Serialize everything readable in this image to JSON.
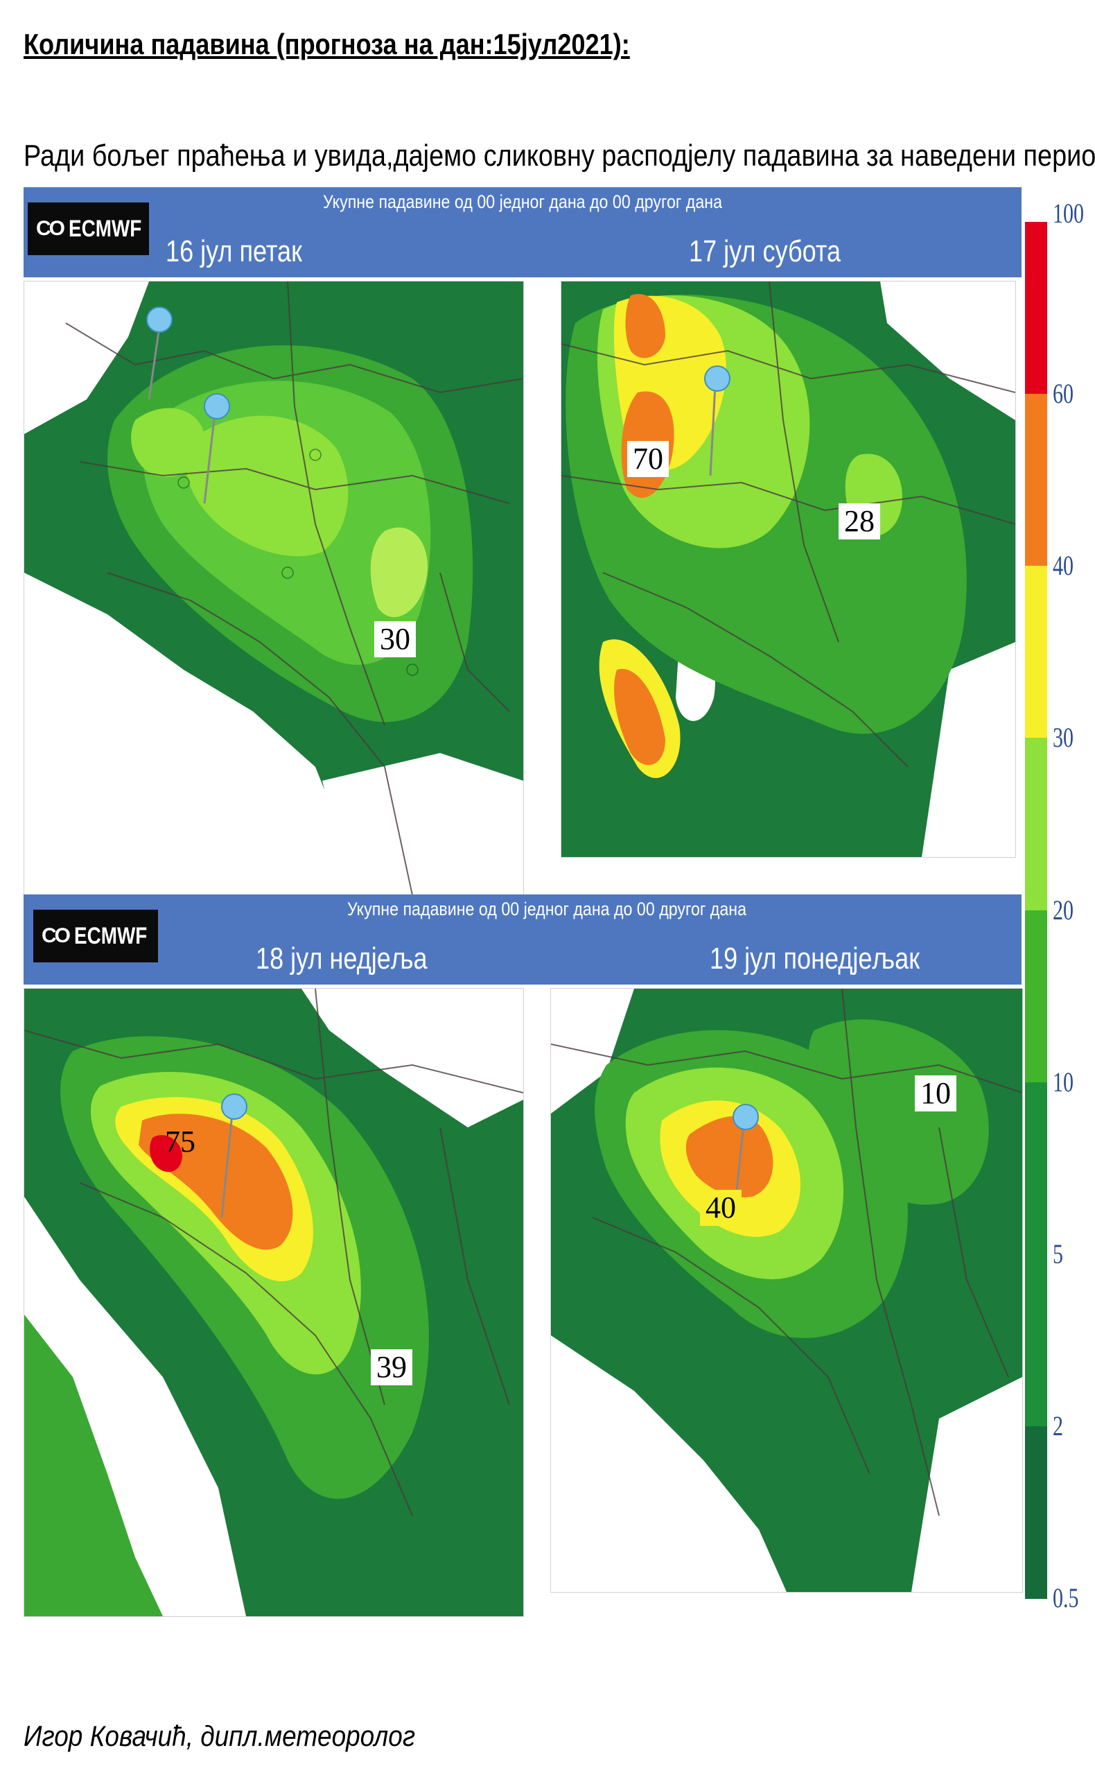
{
  "document": {
    "title": "Количина падавина (прогноза на дан:15јул2021):",
    "intro": "Ради бољег праћења и увида,дајемо сликовну расподјелу падавина за наведени период:",
    "signature": "Игор Ковачић, дипл.метеоролог"
  },
  "figure": {
    "banner_top": {
      "subtitle": "Укупне падавине од 00 једног дана до 00 другог дана",
      "logo": "ECMWF",
      "day_left": "16 јул    петак",
      "day_right": "17 јул субота"
    },
    "banner_bottom": {
      "subtitle": "Укупне падавине од 00 једног дана до 00 другог дана",
      "logo": "ECMWF",
      "day_left": "18 јул недјеља",
      "day_right": "19 јул понедјељак"
    },
    "maps": [
      {
        "day": "16 јул",
        "max_value": "30"
      },
      {
        "day": "17 јул",
        "values": [
          "70",
          "28"
        ]
      },
      {
        "day": "18 јул",
        "values": [
          "75",
          "39"
        ]
      },
      {
        "day": "19 јул",
        "values": [
          "40",
          "10"
        ]
      }
    ],
    "legend": {
      "ticks": [
        "100",
        "60",
        "40",
        "30",
        "20",
        "10",
        "5",
        "2",
        "0.5"
      ],
      "colors": [
        "#e3001b",
        "#f07c1e",
        "#f7ef2a",
        "#8ee03a",
        "#41b52c",
        "#1e8f3a",
        "#156c3a"
      ]
    }
  }
}
